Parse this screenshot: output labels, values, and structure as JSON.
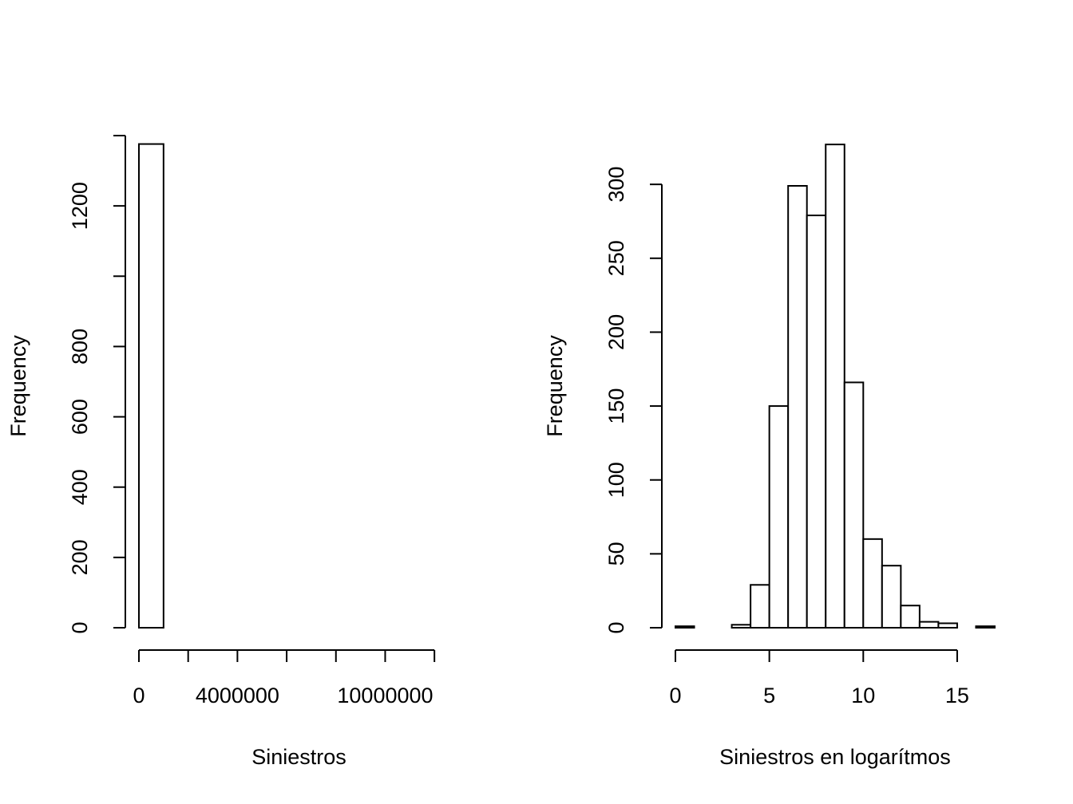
{
  "chart_data": [
    {
      "type": "histogram",
      "xlabel": "Siniestros",
      "ylabel": "Frequency",
      "bins": [
        0,
        1000000,
        2000000,
        3000000,
        4000000,
        5000000,
        6000000,
        7000000,
        8000000,
        9000000,
        10000000,
        11000000,
        12000000,
        13000000
      ],
      "values": [
        1376,
        0,
        0,
        0,
        0,
        0,
        0,
        0,
        0,
        0,
        0,
        0,
        0
      ],
      "color": "#ffffff",
      "edgecolor": "#000000",
      "xlim": [
        0,
        13000000
      ],
      "xticks": [
        0,
        {
          "value": 2000000,
          "label": null
        },
        4000000,
        {
          "value": 6000000,
          "label": null
        },
        {
          "value": 8000000,
          "label": null
        },
        10000000,
        {
          "value": 12000000,
          "label": null
        }
      ],
      "ylim": [
        0,
        1400
      ],
      "yticks": [
        0,
        200,
        400,
        600,
        800,
        {
          "value": 1000,
          "label": null
        },
        1200,
        {
          "value": 1400,
          "label": null
        }
      ]
    },
    {
      "type": "histogram",
      "xlabel": "Siniestros en logarítmos",
      "ylabel": "Frequency",
      "bins": [
        0,
        1,
        2,
        3,
        4,
        5,
        6,
        7,
        8,
        9,
        10,
        11,
        12,
        13,
        14,
        15,
        16,
        17
      ],
      "values": [
        1,
        0,
        0,
        2,
        29,
        150,
        299,
        279,
        327,
        166,
        60,
        42,
        15,
        4,
        3,
        0,
        1
      ],
      "color": "#ffffff",
      "edgecolor": "#000000",
      "xlim": [
        0,
        17
      ],
      "xticks": [
        0,
        5,
        10,
        15
      ],
      "ylim": [
        0,
        333
      ],
      "yticks": [
        0,
        50,
        100,
        150,
        200,
        250,
        300
      ]
    }
  ]
}
